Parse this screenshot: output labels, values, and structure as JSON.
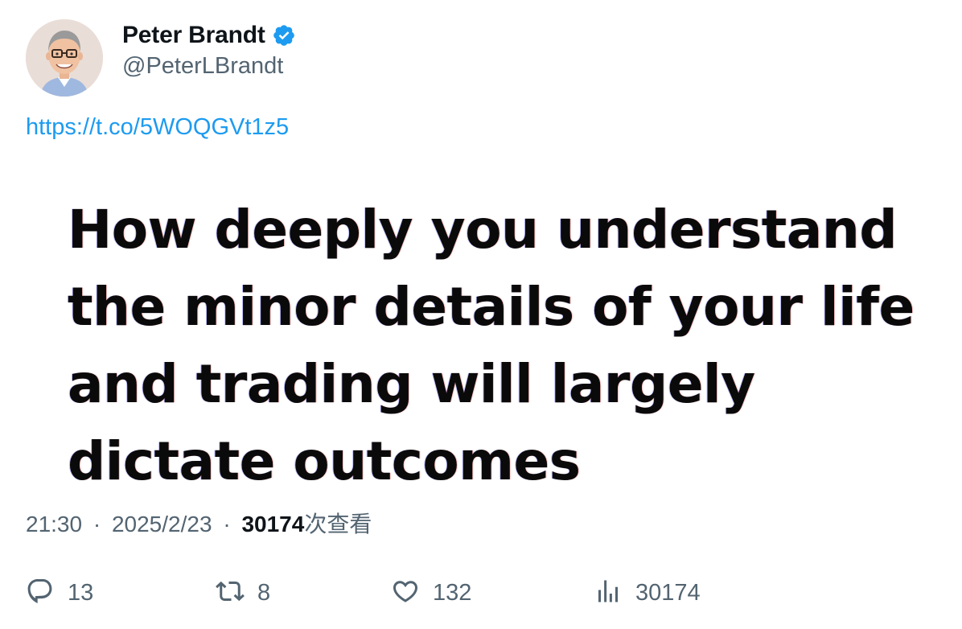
{
  "author": {
    "display_name": "Peter Brandt",
    "handle": "@PeterLBrandt",
    "verified": true
  },
  "tweet": {
    "link": "https://t.co/5WOQGVt1z5",
    "image_text_lines": [
      "How deeply you understand",
      "the minor details of your life",
      "and trading will largely",
      "dictate outcomes"
    ]
  },
  "meta": {
    "time": "21:30",
    "separator": "·",
    "date": "2025/2/23",
    "views_count": "30174",
    "views_label": "次查看"
  },
  "actions": {
    "replies": "13",
    "retweets": "8",
    "likes": "132",
    "views": "30174"
  },
  "colors": {
    "link": "#1d9bf0",
    "secondary_text": "#536471",
    "primary_text": "#0f1419",
    "verified_badge": "#1d9bf0"
  },
  "icons": {
    "verified": "verified-badge-icon",
    "reply": "reply-icon",
    "retweet": "retweet-icon",
    "like": "heart-icon",
    "views": "analytics-icon"
  }
}
